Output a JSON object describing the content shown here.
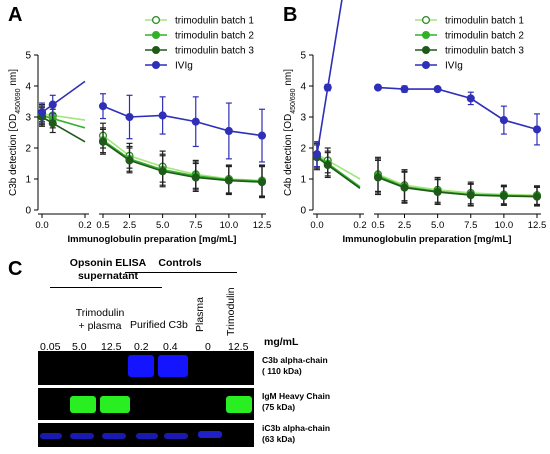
{
  "panel_letters": {
    "a": "A",
    "b": "B",
    "c": "C"
  },
  "colors": {
    "batch1": "#a6e47d",
    "batch2": "#33b02a",
    "batch3": "#1f5a1a",
    "ivig": "#2f2fb8",
    "band_blue": "#1010ff",
    "band_green": "#22ee22"
  },
  "chart_data": [
    {
      "type": "line",
      "panel": "A",
      "ylabel": "C3b detection [OD450/690 nm]",
      "xlabel": "Immunoglobulin preparation [mg/mL]",
      "ylim": [
        0,
        5
      ],
      "y_ticks": [
        "0",
        "1",
        "2",
        "3",
        "4",
        "5"
      ],
      "x_break": true,
      "segments": [
        {
          "x_ticks": [
            "0.0",
            "0.2"
          ],
          "xlim": [
            0,
            0.2
          ]
        },
        {
          "x_ticks": [
            "0.5",
            "2.5",
            "5.0",
            "7.5",
            "10.0",
            "12.5"
          ],
          "xlim": [
            0.5,
            12.5
          ]
        }
      ],
      "series": [
        {
          "name": "trimodulin batch 1",
          "marker": "open-circle",
          "x": [
            0.0,
            0.05,
            0.5,
            2.5,
            5.0,
            7.5,
            10.0,
            12.5
          ],
          "y": [
            3.1,
            3.05,
            2.4,
            1.75,
            1.4,
            1.15,
            1.0,
            0.95
          ],
          "err": [
            0.3,
            0.3,
            0.4,
            0.4,
            0.5,
            0.45,
            0.45,
            0.5
          ]
        },
        {
          "name": "trimodulin batch 2",
          "marker": "circle",
          "x": [
            0.0,
            0.05,
            0.5,
            2.5,
            5.0,
            7.5,
            10.0,
            12.5
          ],
          "y": [
            3.05,
            2.95,
            2.25,
            1.65,
            1.3,
            1.1,
            0.98,
            0.93
          ],
          "err": [
            0.3,
            0.3,
            0.4,
            0.4,
            0.5,
            0.45,
            0.45,
            0.5
          ]
        },
        {
          "name": "trimodulin batch 3",
          "marker": "circle",
          "x": [
            0.0,
            0.05,
            0.5,
            2.5,
            5.0,
            7.5,
            10.0,
            12.5
          ],
          "y": [
            3.0,
            2.8,
            2.2,
            1.6,
            1.25,
            1.05,
            0.95,
            0.9
          ],
          "err": [
            0.3,
            0.3,
            0.4,
            0.4,
            0.5,
            0.45,
            0.45,
            0.5
          ]
        },
        {
          "name": "IVIg",
          "marker": "circle",
          "x": [
            0.0,
            0.05,
            0.5,
            2.5,
            5.0,
            7.5,
            10.0,
            12.5
          ],
          "y": [
            3.15,
            3.4,
            3.35,
            3.0,
            3.05,
            2.85,
            2.55,
            2.4
          ],
          "err": [
            0.3,
            0.3,
            0.4,
            0.7,
            0.6,
            0.8,
            0.9,
            0.85
          ]
        }
      ]
    },
    {
      "type": "line",
      "panel": "B",
      "ylabel": "C4b detection [OD450/690 nm]",
      "xlabel": "Immunoglobulin preparation [mg/mL]",
      "ylim": [
        0,
        5
      ],
      "y_ticks": [
        "0",
        "1",
        "2",
        "3",
        "4",
        "5"
      ],
      "x_break": true,
      "segments": [
        {
          "x_ticks": [
            "0.0",
            "0.2"
          ],
          "xlim": [
            0,
            0.2
          ]
        },
        {
          "x_ticks": [
            "0.5",
            "2.5",
            "5.0",
            "7.5",
            "10.0",
            "12.5"
          ],
          "xlim": [
            0.5,
            12.5
          ]
        }
      ],
      "series": [
        {
          "name": "trimodulin batch 1",
          "marker": "open-circle",
          "x": [
            0.0,
            0.05,
            0.5,
            2.5,
            5.0,
            7.5,
            10.0,
            12.5
          ],
          "y": [
            1.8,
            1.6,
            1.15,
            0.8,
            0.65,
            0.55,
            0.5,
            0.48
          ],
          "err": [
            0.4,
            0.4,
            0.55,
            0.5,
            0.4,
            0.35,
            0.3,
            0.3
          ]
        },
        {
          "name": "trimodulin batch 2",
          "marker": "circle",
          "x": [
            0.0,
            0.05,
            0.5,
            2.5,
            5.0,
            7.5,
            10.0,
            12.5
          ],
          "y": [
            1.75,
            1.5,
            1.1,
            0.75,
            0.6,
            0.5,
            0.47,
            0.45
          ],
          "err": [
            0.4,
            0.4,
            0.55,
            0.5,
            0.4,
            0.35,
            0.3,
            0.3
          ]
        },
        {
          "name": "trimodulin batch 3",
          "marker": "circle",
          "x": [
            0.0,
            0.05,
            0.5,
            2.5,
            5.0,
            7.5,
            10.0,
            12.5
          ],
          "y": [
            1.7,
            1.45,
            1.05,
            0.72,
            0.58,
            0.48,
            0.45,
            0.43
          ],
          "err": [
            0.4,
            0.4,
            0.55,
            0.5,
            0.4,
            0.35,
            0.3,
            0.3
          ]
        },
        {
          "name": "IVIg",
          "marker": "circle",
          "x": [
            0.0,
            0.05,
            0.5,
            2.5,
            5.0,
            7.5,
            10.0,
            12.5
          ],
          "y": [
            1.8,
            3.95,
            3.95,
            3.9,
            3.9,
            3.6,
            2.9,
            2.6
          ],
          "err": [
            0.4,
            0.1,
            0.05,
            0.1,
            0.05,
            0.2,
            0.45,
            0.5
          ]
        }
      ]
    }
  ],
  "western_blot": {
    "group_headers": {
      "opsonin": "Opsonin ELISA\nsupernatant",
      "controls": "Controls"
    },
    "lane_group_labels": {
      "trimodulin_plasma": "Trimodulin\n+ plasma",
      "purified_c3b": "Purified C3b",
      "plasma": "Plasma",
      "trimodulin": "Trimodulin"
    },
    "conc_unit": "mg/mL",
    "concentrations": [
      "0.05",
      "5.0",
      "12.5",
      "0.2",
      "0.4",
      "0",
      "12.5"
    ],
    "rows": [
      {
        "label": "C3b alpha-chain\n( 110 kDa)"
      },
      {
        "label": "IgM Heavy Chain\n(75 kDa)"
      },
      {
        "label": "iC3b alpha-chain\n(63 kDa)"
      }
    ]
  }
}
